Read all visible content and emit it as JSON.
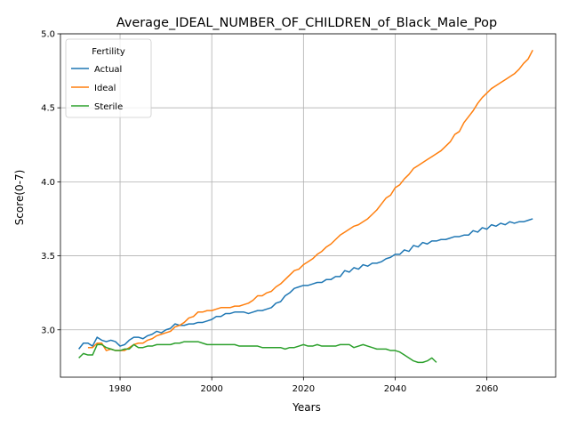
{
  "chart_data": {
    "type": "line",
    "title": "Average_IDEAL_NUMBER_OF_CHILDREN_of_Black_Male_Pop",
    "xlabel": "Years",
    "ylabel": "Score(0-7)",
    "xlim": [
      1967,
      2075
    ],
    "ylim": [
      2.68,
      5.0
    ],
    "xticks": [
      1980,
      2000,
      2020,
      2040,
      2060
    ],
    "yticks": [
      3.0,
      3.5,
      4.0,
      4.5,
      5.0
    ],
    "xtick_labels": [
      "1980",
      "2000",
      "2020",
      "2040",
      "2060"
    ],
    "ytick_labels": [
      "3.0",
      "3.5",
      "4.0",
      "4.5",
      "5.0"
    ],
    "grid": true,
    "legend": {
      "title": "Fertility",
      "position": "top-left"
    },
    "series": [
      {
        "name": "Actual",
        "color": "#1f77b4",
        "x": [
          1971,
          1972,
          1973,
          1974,
          1975,
          1976,
          1977,
          1978,
          1979,
          1980,
          1981,
          1982,
          1983,
          1984,
          1985,
          1986,
          1987,
          1988,
          1989,
          1990,
          1991,
          1992,
          1993,
          1994,
          1995,
          1996,
          1997,
          1998,
          1999,
          2000,
          2001,
          2002,
          2003,
          2004,
          2005,
          2006,
          2007,
          2008,
          2009,
          2010,
          2011,
          2012,
          2013,
          2014,
          2015,
          2016,
          2017,
          2018,
          2019,
          2020,
          2021,
          2022,
          2023,
          2024,
          2025,
          2026,
          2027,
          2028,
          2029,
          2030,
          2031,
          2032,
          2033,
          2034,
          2035,
          2036,
          2037,
          2038,
          2039,
          2040,
          2041,
          2042,
          2043,
          2044,
          2045,
          2046,
          2047,
          2048,
          2049,
          2050,
          2051,
          2052,
          2053,
          2054,
          2055,
          2056,
          2057,
          2058,
          2059,
          2060,
          2061,
          2062,
          2063,
          2064,
          2065,
          2066,
          2067,
          2068,
          2069,
          2070
        ],
        "y": [
          2.87,
          2.91,
          2.91,
          2.89,
          2.95,
          2.93,
          2.92,
          2.93,
          2.92,
          2.89,
          2.9,
          2.93,
          2.95,
          2.95,
          2.94,
          2.96,
          2.97,
          2.99,
          2.98,
          3.0,
          3.01,
          3.04,
          3.03,
          3.03,
          3.04,
          3.04,
          3.05,
          3.05,
          3.06,
          3.07,
          3.09,
          3.09,
          3.11,
          3.11,
          3.12,
          3.12,
          3.12,
          3.11,
          3.12,
          3.13,
          3.13,
          3.14,
          3.15,
          3.18,
          3.19,
          3.23,
          3.25,
          3.28,
          3.29,
          3.3,
          3.3,
          3.31,
          3.32,
          3.32,
          3.34,
          3.34,
          3.36,
          3.36,
          3.4,
          3.39,
          3.42,
          3.41,
          3.44,
          3.43,
          3.45,
          3.45,
          3.46,
          3.48,
          3.49,
          3.51,
          3.51,
          3.54,
          3.53,
          3.57,
          3.56,
          3.59,
          3.58,
          3.6,
          3.6,
          3.61,
          3.61,
          3.62,
          3.63,
          3.63,
          3.64,
          3.64,
          3.67,
          3.66,
          3.69,
          3.68,
          3.71,
          3.7,
          3.72,
          3.71,
          3.73,
          3.72,
          3.73,
          3.73,
          3.74,
          3.75
        ]
      },
      {
        "name": "Ideal",
        "color": "#ff7f0e",
        "x": [
          1973,
          1974,
          1975,
          1976,
          1977,
          1978,
          1979,
          1980,
          1981,
          1982,
          1983,
          1984,
          1985,
          1986,
          1987,
          1988,
          1989,
          1990,
          1991,
          1992,
          1993,
          1994,
          1995,
          1996,
          1997,
          1998,
          1999,
          2000,
          2001,
          2002,
          2003,
          2004,
          2005,
          2006,
          2007,
          2008,
          2009,
          2010,
          2011,
          2012,
          2013,
          2014,
          2015,
          2016,
          2017,
          2018,
          2019,
          2020,
          2021,
          2022,
          2023,
          2024,
          2025,
          2026,
          2027,
          2028,
          2029,
          2030,
          2031,
          2032,
          2033,
          2034,
          2035,
          2036,
          2037,
          2038,
          2039,
          2040,
          2041,
          2042,
          2043,
          2044,
          2045,
          2046,
          2047,
          2048,
          2049,
          2050,
          2051,
          2052,
          2053,
          2054,
          2055,
          2056,
          2057,
          2058,
          2059,
          2060,
          2061,
          2062,
          2063,
          2064,
          2065,
          2066,
          2067,
          2068,
          2069,
          2070
        ],
        "y": [
          2.88,
          2.88,
          2.91,
          2.91,
          2.86,
          2.87,
          2.86,
          2.86,
          2.86,
          2.88,
          2.9,
          2.91,
          2.91,
          2.93,
          2.94,
          2.96,
          2.97,
          2.98,
          2.99,
          3.02,
          3.03,
          3.05,
          3.08,
          3.09,
          3.12,
          3.12,
          3.13,
          3.13,
          3.14,
          3.15,
          3.15,
          3.15,
          3.16,
          3.16,
          3.17,
          3.18,
          3.2,
          3.23,
          3.23,
          3.25,
          3.26,
          3.29,
          3.31,
          3.34,
          3.37,
          3.4,
          3.41,
          3.44,
          3.46,
          3.48,
          3.51,
          3.53,
          3.56,
          3.58,
          3.61,
          3.64,
          3.66,
          3.68,
          3.7,
          3.71,
          3.73,
          3.75,
          3.78,
          3.81,
          3.85,
          3.89,
          3.91,
          3.96,
          3.98,
          4.02,
          4.05,
          4.09,
          4.11,
          4.13,
          4.15,
          4.17,
          4.19,
          4.21,
          4.24,
          4.27,
          4.32,
          4.34,
          4.4,
          4.44,
          4.48,
          4.53,
          4.57,
          4.6,
          4.63,
          4.65,
          4.67,
          4.69,
          4.71,
          4.73,
          4.76,
          4.8,
          4.83,
          4.89
        ]
      },
      {
        "name": "Sterile",
        "color": "#2ca02c",
        "x": [
          1971,
          1972,
          1973,
          1974,
          1975,
          1976,
          1977,
          1978,
          1979,
          1980,
          1981,
          1982,
          1983,
          1984,
          1985,
          1986,
          1987,
          1988,
          1989,
          1990,
          1991,
          1992,
          1993,
          1994,
          1995,
          1996,
          1997,
          1998,
          1999,
          2000,
          2001,
          2002,
          2003,
          2004,
          2005,
          2006,
          2007,
          2008,
          2009,
          2010,
          2011,
          2012,
          2013,
          2014,
          2015,
          2016,
          2017,
          2018,
          2019,
          2020,
          2021,
          2022,
          2023,
          2024,
          2025,
          2026,
          2027,
          2028,
          2029,
          2030,
          2031,
          2032,
          2033,
          2034,
          2035,
          2036,
          2037,
          2038,
          2039,
          2040,
          2041,
          2042,
          2043,
          2044,
          2045,
          2046,
          2047,
          2048,
          2049
        ],
        "y": [
          2.81,
          2.84,
          2.83,
          2.83,
          2.9,
          2.9,
          2.88,
          2.87,
          2.86,
          2.86,
          2.87,
          2.87,
          2.9,
          2.88,
          2.88,
          2.89,
          2.89,
          2.9,
          2.9,
          2.9,
          2.9,
          2.91,
          2.91,
          2.92,
          2.92,
          2.92,
          2.92,
          2.91,
          2.9,
          2.9,
          2.9,
          2.9,
          2.9,
          2.9,
          2.9,
          2.89,
          2.89,
          2.89,
          2.89,
          2.89,
          2.88,
          2.88,
          2.88,
          2.88,
          2.88,
          2.87,
          2.88,
          2.88,
          2.89,
          2.9,
          2.89,
          2.89,
          2.9,
          2.89,
          2.89,
          2.89,
          2.89,
          2.9,
          2.9,
          2.9,
          2.88,
          2.89,
          2.9,
          2.89,
          2.88,
          2.87,
          2.87,
          2.87,
          2.86,
          2.86,
          2.85,
          2.83,
          2.81,
          2.79,
          2.78,
          2.78,
          2.79,
          2.81,
          2.78
        ]
      }
    ]
  }
}
